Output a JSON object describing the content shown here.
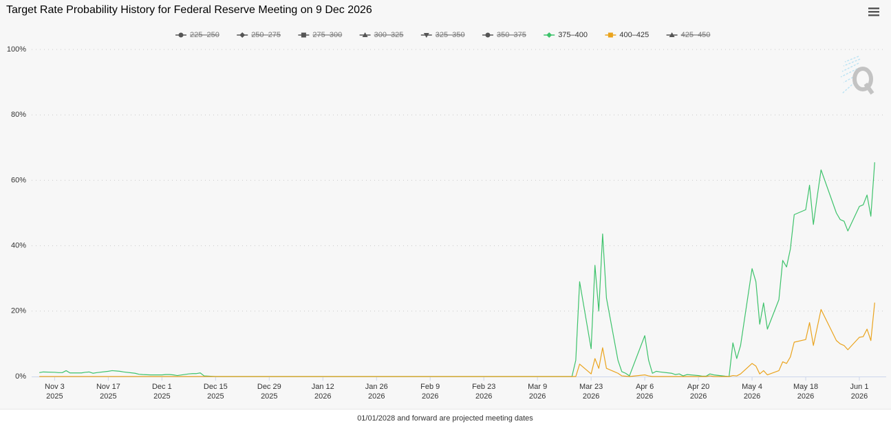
{
  "chart_data": {
    "type": "line",
    "title": "Target Rate Probability History for Federal Reserve Meeting on 9 Dec 2026",
    "note": "01/01/2028 and forward are projected meeting dates",
    "x": [
      "2025-10-30",
      "2025-10-31",
      "2025-11-03",
      "2025-11-04",
      "2025-11-05",
      "2025-11-06",
      "2025-11-07",
      "2025-11-10",
      "2025-11-11",
      "2025-11-12",
      "2025-11-13",
      "2025-11-14",
      "2025-11-17",
      "2025-11-18",
      "2025-11-19",
      "2025-11-20",
      "2025-11-21",
      "2025-11-24",
      "2025-11-25",
      "2025-11-26",
      "2025-11-28",
      "2025-12-01",
      "2025-12-02",
      "2025-12-03",
      "2025-12-04",
      "2025-12-05",
      "2025-12-08",
      "2025-12-09",
      "2025-12-10",
      "2025-12-11",
      "2025-12-12",
      "2025-12-15",
      "2026-03-18",
      "2026-03-19",
      "2026-03-20",
      "2026-03-23",
      "2026-03-24",
      "2026-03-25",
      "2026-03-26",
      "2026-03-27",
      "2026-03-30",
      "2026-03-31",
      "2026-04-01",
      "2026-04-02",
      "2026-04-06",
      "2026-04-07",
      "2026-04-08",
      "2026-04-09",
      "2026-04-10",
      "2026-04-13",
      "2026-04-14",
      "2026-04-15",
      "2026-04-16",
      "2026-04-17",
      "2026-04-20",
      "2026-04-21",
      "2026-04-22",
      "2026-04-23",
      "2026-04-24",
      "2026-04-27",
      "2026-04-28",
      "2026-04-29",
      "2026-04-30",
      "2026-05-01",
      "2026-05-04",
      "2026-05-05",
      "2026-05-06",
      "2026-05-07",
      "2026-05-08",
      "2026-05-11",
      "2026-05-12",
      "2026-05-13",
      "2026-05-14",
      "2026-05-15",
      "2026-05-18",
      "2026-05-19",
      "2026-05-20",
      "2026-05-21",
      "2026-05-22",
      "2026-05-26",
      "2026-05-27",
      "2026-05-28",
      "2026-05-29",
      "2026-06-01",
      "2026-06-02",
      "2026-06-03",
      "2026-06-04",
      "2026-06-05"
    ],
    "series": [
      {
        "name": "225–250",
        "color": "#555555",
        "marker": "circle",
        "visible": false
      },
      {
        "name": "250–275",
        "color": "#555555",
        "marker": "diamond",
        "visible": false
      },
      {
        "name": "275–300",
        "color": "#555555",
        "marker": "square",
        "visible": false
      },
      {
        "name": "300–325",
        "color": "#555555",
        "marker": "triangle",
        "visible": false
      },
      {
        "name": "325–350",
        "color": "#555555",
        "marker": "triangle-down",
        "visible": false
      },
      {
        "name": "350–375",
        "color": "#555555",
        "marker": "circle",
        "visible": false
      },
      {
        "name": "375–400",
        "color": "#3cc26a",
        "marker": "diamond",
        "visible": true,
        "values": [
          1.2,
          1.4,
          1.3,
          1.2,
          1.2,
          1.8,
          1.1,
          1.1,
          1.3,
          1.4,
          1.0,
          1.2,
          1.6,
          1.8,
          1.7,
          1.6,
          1.4,
          1.0,
          0.7,
          0.6,
          0.5,
          0.5,
          0.6,
          0.6,
          0.5,
          0.3,
          0.8,
          0.9,
          0.9,
          1.1,
          0.2,
          0,
          0,
          5,
          29,
          8.5,
          34,
          20,
          43.6,
          24,
          5,
          1.5,
          1,
          0.2,
          12.5,
          5,
          1,
          1.6,
          1.4,
          1,
          0.6,
          0.8,
          0.2,
          0.6,
          0.3,
          0.1,
          0.1,
          0.8,
          0.5,
          0.1,
          0,
          10.3,
          5.5,
          9.5,
          33,
          29,
          16,
          22.5,
          14.5,
          23.5,
          35.5,
          33.5,
          39,
          49.5,
          51,
          58.5,
          46.5,
          55,
          63.2,
          50,
          48,
          47.5,
          44.5,
          52,
          52.5,
          55.5,
          49,
          65.5
        ]
      },
      {
        "name": "400–425",
        "color": "#eaa31c",
        "marker": "square",
        "visible": true,
        "values": [
          0,
          0,
          0,
          0,
          0,
          0,
          0,
          0,
          0,
          0,
          0,
          0,
          0,
          0,
          0,
          0,
          0,
          0,
          0,
          0,
          0,
          0,
          0,
          0,
          0,
          0,
          0,
          0,
          0,
          0,
          0,
          0,
          0,
          0,
          3.8,
          0.8,
          5.5,
          2.5,
          8.8,
          2.5,
          1,
          0.2,
          0.1,
          0,
          0.5,
          0.2,
          0,
          0,
          0,
          0,
          0,
          0,
          0,
          0,
          0,
          0,
          0,
          0.2,
          0,
          0,
          0,
          0.3,
          0.2,
          0.8,
          4,
          3.2,
          0.8,
          1.8,
          0.5,
          1.8,
          4.5,
          4,
          6,
          10.5,
          11.3,
          16.5,
          9.5,
          15,
          20.5,
          11,
          10,
          9.5,
          8.2,
          12,
          12.2,
          14.5,
          11,
          22.6
        ]
      },
      {
        "name": "425–450",
        "color": "#555555",
        "marker": "triangle",
        "visible": false
      }
    ],
    "xlim": [
      "2025-10-28",
      "2026-06-08"
    ],
    "xticks": [
      {
        "value": "2025-11-03",
        "label": [
          "Nov 3",
          "2025"
        ]
      },
      {
        "value": "2025-11-17",
        "label": [
          "Nov 17",
          "2025"
        ]
      },
      {
        "value": "2025-12-01",
        "label": [
          "Dec 1",
          "2025"
        ]
      },
      {
        "value": "2025-12-15",
        "label": [
          "Dec 15",
          "2025"
        ]
      },
      {
        "value": "2025-12-29",
        "label": [
          "Dec 29",
          "2025"
        ]
      },
      {
        "value": "2026-01-12",
        "label": [
          "Jan 12",
          "2026"
        ]
      },
      {
        "value": "2026-01-26",
        "label": [
          "Jan 26",
          "2026"
        ]
      },
      {
        "value": "2026-02-09",
        "label": [
          "Feb 9",
          "2026"
        ]
      },
      {
        "value": "2026-02-23",
        "label": [
          "Feb 23",
          "2026"
        ]
      },
      {
        "value": "2026-03-09",
        "label": [
          "Mar 9",
          "2026"
        ]
      },
      {
        "value": "2026-03-23",
        "label": [
          "Mar 23",
          "2026"
        ]
      },
      {
        "value": "2026-04-06",
        "label": [
          "Apr 6",
          "2026"
        ]
      },
      {
        "value": "2026-04-20",
        "label": [
          "Apr 20",
          "2026"
        ]
      },
      {
        "value": "2026-05-04",
        "label": [
          "May 4",
          "2026"
        ]
      },
      {
        "value": "2026-05-18",
        "label": [
          "May 18",
          "2026"
        ]
      },
      {
        "value": "2026-06-01",
        "label": [
          "Jun 1",
          "2026"
        ]
      }
    ],
    "ylim": [
      0,
      100
    ],
    "yticks": [
      {
        "value": 0,
        "label": "0%"
      },
      {
        "value": 20,
        "label": "20%"
      },
      {
        "value": 40,
        "label": "40%"
      },
      {
        "value": 60,
        "label": "60%"
      },
      {
        "value": 80,
        "label": "80%"
      },
      {
        "value": 100,
        "label": "100%"
      }
    ],
    "grid": true
  }
}
